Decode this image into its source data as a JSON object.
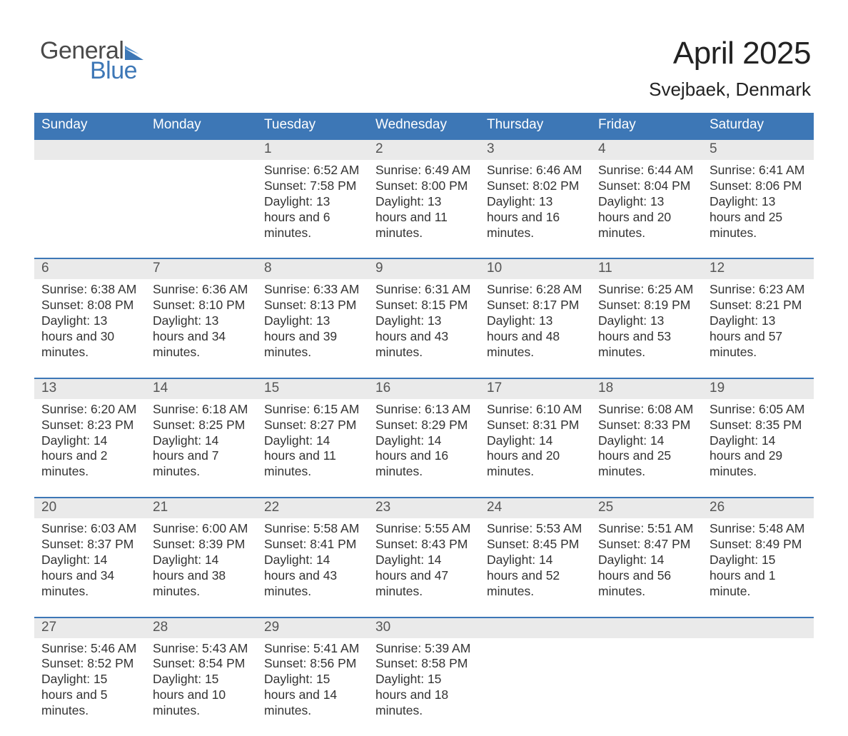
{
  "colors": {
    "brand_blue": "#3d77b6",
    "header_bg": "#3d77b6",
    "week_separator": "#3d77b6",
    "daynum_bg": "#eaeaea",
    "text": "#333333",
    "title": "#222222",
    "background": "#ffffff",
    "logo_gray": "#4a4a4a"
  },
  "typography": {
    "month_title_fontsize_pt": 33,
    "location_fontsize_pt": 20,
    "header_fontsize_pt": 14,
    "daynum_fontsize_pt": 14,
    "body_fontsize_pt": 13,
    "font_family": "Arial"
  },
  "logo": {
    "word1": "General",
    "word2": "Blue"
  },
  "title": {
    "month": "April 2025",
    "location": "Svejbaek, Denmark"
  },
  "calendar": {
    "type": "table",
    "columns": [
      "Sunday",
      "Monday",
      "Tuesday",
      "Wednesday",
      "Thursday",
      "Friday",
      "Saturday"
    ],
    "weeks": [
      [
        null,
        null,
        {
          "day": "1",
          "sunrise": "Sunrise: 6:52 AM",
          "sunset": "Sunset: 7:58 PM",
          "daylight": "Daylight: 13 hours and 6 minutes."
        },
        {
          "day": "2",
          "sunrise": "Sunrise: 6:49 AM",
          "sunset": "Sunset: 8:00 PM",
          "daylight": "Daylight: 13 hours and 11 minutes."
        },
        {
          "day": "3",
          "sunrise": "Sunrise: 6:46 AM",
          "sunset": "Sunset: 8:02 PM",
          "daylight": "Daylight: 13 hours and 16 minutes."
        },
        {
          "day": "4",
          "sunrise": "Sunrise: 6:44 AM",
          "sunset": "Sunset: 8:04 PM",
          "daylight": "Daylight: 13 hours and 20 minutes."
        },
        {
          "day": "5",
          "sunrise": "Sunrise: 6:41 AM",
          "sunset": "Sunset: 8:06 PM",
          "daylight": "Daylight: 13 hours and 25 minutes."
        }
      ],
      [
        {
          "day": "6",
          "sunrise": "Sunrise: 6:38 AM",
          "sunset": "Sunset: 8:08 PM",
          "daylight": "Daylight: 13 hours and 30 minutes."
        },
        {
          "day": "7",
          "sunrise": "Sunrise: 6:36 AM",
          "sunset": "Sunset: 8:10 PM",
          "daylight": "Daylight: 13 hours and 34 minutes."
        },
        {
          "day": "8",
          "sunrise": "Sunrise: 6:33 AM",
          "sunset": "Sunset: 8:13 PM",
          "daylight": "Daylight: 13 hours and 39 minutes."
        },
        {
          "day": "9",
          "sunrise": "Sunrise: 6:31 AM",
          "sunset": "Sunset: 8:15 PM",
          "daylight": "Daylight: 13 hours and 43 minutes."
        },
        {
          "day": "10",
          "sunrise": "Sunrise: 6:28 AM",
          "sunset": "Sunset: 8:17 PM",
          "daylight": "Daylight: 13 hours and 48 minutes."
        },
        {
          "day": "11",
          "sunrise": "Sunrise: 6:25 AM",
          "sunset": "Sunset: 8:19 PM",
          "daylight": "Daylight: 13 hours and 53 minutes."
        },
        {
          "day": "12",
          "sunrise": "Sunrise: 6:23 AM",
          "sunset": "Sunset: 8:21 PM",
          "daylight": "Daylight: 13 hours and 57 minutes."
        }
      ],
      [
        {
          "day": "13",
          "sunrise": "Sunrise: 6:20 AM",
          "sunset": "Sunset: 8:23 PM",
          "daylight": "Daylight: 14 hours and 2 minutes."
        },
        {
          "day": "14",
          "sunrise": "Sunrise: 6:18 AM",
          "sunset": "Sunset: 8:25 PM",
          "daylight": "Daylight: 14 hours and 7 minutes."
        },
        {
          "day": "15",
          "sunrise": "Sunrise: 6:15 AM",
          "sunset": "Sunset: 8:27 PM",
          "daylight": "Daylight: 14 hours and 11 minutes."
        },
        {
          "day": "16",
          "sunrise": "Sunrise: 6:13 AM",
          "sunset": "Sunset: 8:29 PM",
          "daylight": "Daylight: 14 hours and 16 minutes."
        },
        {
          "day": "17",
          "sunrise": "Sunrise: 6:10 AM",
          "sunset": "Sunset: 8:31 PM",
          "daylight": "Daylight: 14 hours and 20 minutes."
        },
        {
          "day": "18",
          "sunrise": "Sunrise: 6:08 AM",
          "sunset": "Sunset: 8:33 PM",
          "daylight": "Daylight: 14 hours and 25 minutes."
        },
        {
          "day": "19",
          "sunrise": "Sunrise: 6:05 AM",
          "sunset": "Sunset: 8:35 PM",
          "daylight": "Daylight: 14 hours and 29 minutes."
        }
      ],
      [
        {
          "day": "20",
          "sunrise": "Sunrise: 6:03 AM",
          "sunset": "Sunset: 8:37 PM",
          "daylight": "Daylight: 14 hours and 34 minutes."
        },
        {
          "day": "21",
          "sunrise": "Sunrise: 6:00 AM",
          "sunset": "Sunset: 8:39 PM",
          "daylight": "Daylight: 14 hours and 38 minutes."
        },
        {
          "day": "22",
          "sunrise": "Sunrise: 5:58 AM",
          "sunset": "Sunset: 8:41 PM",
          "daylight": "Daylight: 14 hours and 43 minutes."
        },
        {
          "day": "23",
          "sunrise": "Sunrise: 5:55 AM",
          "sunset": "Sunset: 8:43 PM",
          "daylight": "Daylight: 14 hours and 47 minutes."
        },
        {
          "day": "24",
          "sunrise": "Sunrise: 5:53 AM",
          "sunset": "Sunset: 8:45 PM",
          "daylight": "Daylight: 14 hours and 52 minutes."
        },
        {
          "day": "25",
          "sunrise": "Sunrise: 5:51 AM",
          "sunset": "Sunset: 8:47 PM",
          "daylight": "Daylight: 14 hours and 56 minutes."
        },
        {
          "day": "26",
          "sunrise": "Sunrise: 5:48 AM",
          "sunset": "Sunset: 8:49 PM",
          "daylight": "Daylight: 15 hours and 1 minute."
        }
      ],
      [
        {
          "day": "27",
          "sunrise": "Sunrise: 5:46 AM",
          "sunset": "Sunset: 8:52 PM",
          "daylight": "Daylight: 15 hours and 5 minutes."
        },
        {
          "day": "28",
          "sunrise": "Sunrise: 5:43 AM",
          "sunset": "Sunset: 8:54 PM",
          "daylight": "Daylight: 15 hours and 10 minutes."
        },
        {
          "day": "29",
          "sunrise": "Sunrise: 5:41 AM",
          "sunset": "Sunset: 8:56 PM",
          "daylight": "Daylight: 15 hours and 14 minutes."
        },
        {
          "day": "30",
          "sunrise": "Sunrise: 5:39 AM",
          "sunset": "Sunset: 8:58 PM",
          "daylight": "Daylight: 15 hours and 18 minutes."
        },
        null,
        null,
        null
      ]
    ]
  }
}
